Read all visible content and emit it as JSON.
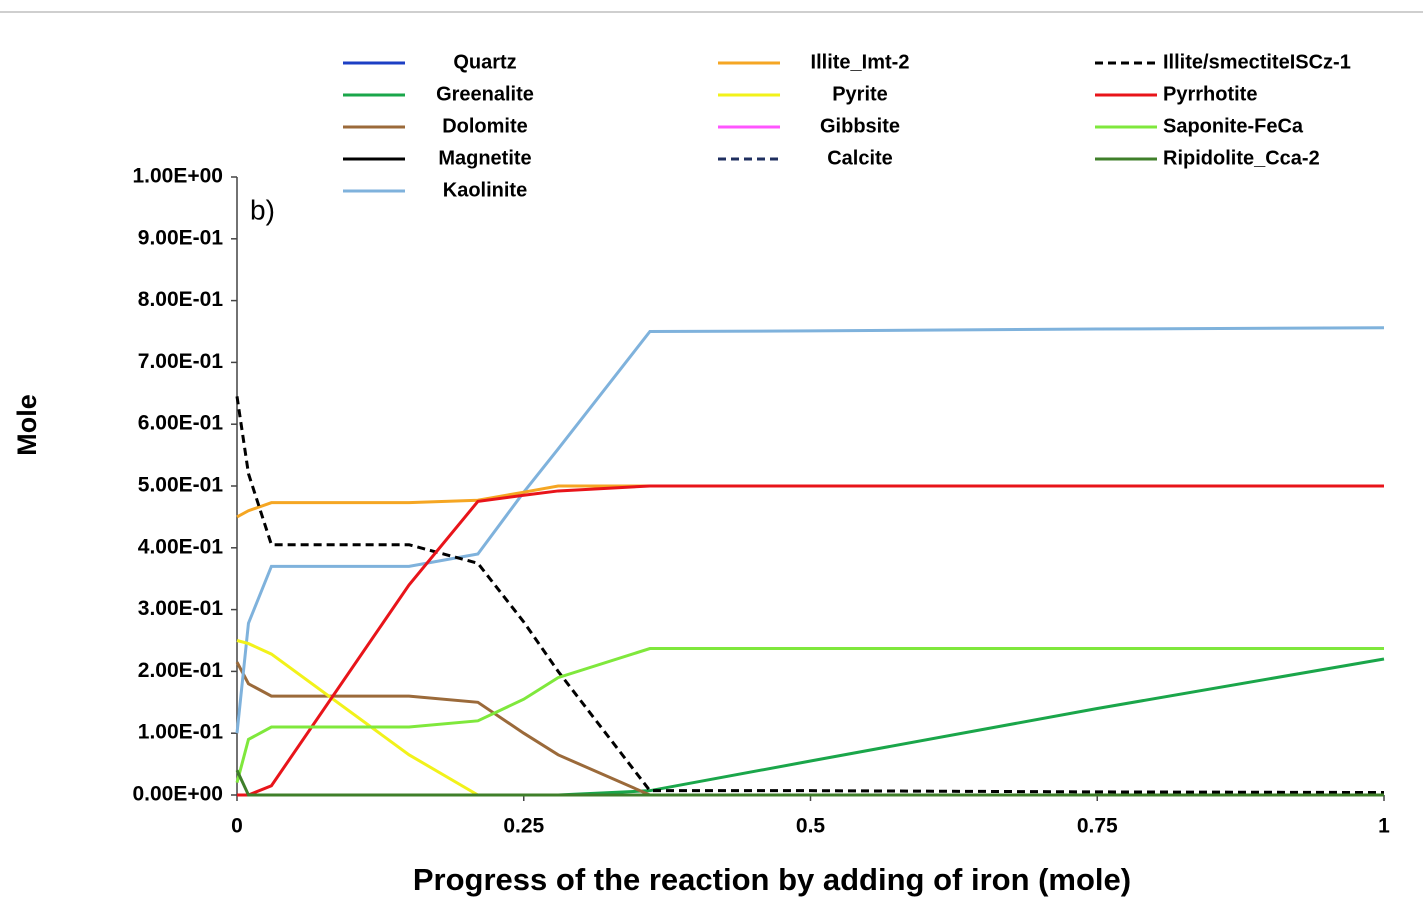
{
  "chart_data": {
    "type": "line",
    "annotation": "b)",
    "x_label": "Progress of the reaction by adding of iron (mole)",
    "y_label": "Mole",
    "x": [
      0,
      0.01,
      0.03,
      0.15,
      0.21,
      0.25,
      0.28,
      0.36,
      0.5,
      0.75,
      1
    ],
    "xlim": [
      0,
      1
    ],
    "xticks": [
      0,
      0.25,
      0.5,
      0.75,
      1
    ],
    "ylim": [
      0,
      1
    ],
    "yticks": [
      {
        "value": 0,
        "label": "0.00E+00"
      },
      {
        "value": 0.1,
        "label": "1.00E-01"
      },
      {
        "value": 0.2,
        "label": "2.00E-01"
      },
      {
        "value": 0.3,
        "label": "3.00E-01"
      },
      {
        "value": 0.4,
        "label": "4.00E-01"
      },
      {
        "value": 0.5,
        "label": "5.00E-01"
      },
      {
        "value": 0.6,
        "label": "6.00E-01"
      },
      {
        "value": 0.7,
        "label": "7.00E-01"
      },
      {
        "value": 0.8,
        "label": "8.00E-01"
      },
      {
        "value": 0.9,
        "label": "9.00E-01"
      },
      {
        "value": 1,
        "label": "1.00E+00"
      }
    ],
    "series": [
      {
        "name": "Quartz",
        "color": "#1c3fc4",
        "dashed": false,
        "values": [
          0,
          0,
          0,
          0,
          0,
          0,
          0,
          0,
          0,
          0,
          0
        ]
      },
      {
        "name": "Greenalite",
        "color": "#1aa64a",
        "dashed": false,
        "values": [
          0,
          0,
          0,
          0,
          0,
          0,
          0,
          0.007,
          0.055,
          0.14,
          0.22
        ]
      },
      {
        "name": "Dolomite",
        "color": "#9b6a3a",
        "dashed": false,
        "values": [
          0.215,
          0.18,
          0.16,
          0.16,
          0.15,
          0.1,
          0.065,
          0,
          0,
          0,
          0
        ]
      },
      {
        "name": "Magnetite",
        "color": "#000000",
        "dashed": false,
        "values": [
          0,
          0,
          0,
          0,
          0,
          0,
          0,
          0,
          0,
          0,
          0
        ]
      },
      {
        "name": "Kaolinite",
        "color": "#7fb2dc",
        "dashed": false,
        "values": [
          0.1,
          0.278,
          0.37,
          0.37,
          0.39,
          0.49,
          0.56,
          0.75,
          0.751,
          0.754,
          0.756
        ]
      },
      {
        "name": "Illite_Imt-2",
        "color": "#f5a623",
        "dashed": false,
        "values": [
          0.45,
          0.46,
          0.473,
          0.473,
          0.477,
          0.49,
          0.5,
          0.5,
          0.5,
          0.5,
          0.5
        ]
      },
      {
        "name": "Pyrite",
        "color": "#f2f21a",
        "dashed": false,
        "values": [
          0.25,
          0.245,
          0.228,
          0.065,
          0,
          0,
          0,
          0,
          0,
          0,
          0
        ]
      },
      {
        "name": "Gibbsite",
        "color": "#ff55ff",
        "dashed": false,
        "values": [
          0,
          0,
          0,
          0,
          0,
          0,
          0,
          0,
          0,
          0,
          0
        ]
      },
      {
        "name": "Calcite",
        "color": "#1f2f5f",
        "dashed": true,
        "values": [
          0,
          0,
          0,
          0,
          0,
          0,
          0,
          0,
          0,
          0,
          0
        ]
      },
      {
        "name": "Illite/smectiteISCz-1",
        "color": "#000000",
        "dashed": true,
        "values": [
          0.645,
          0.52,
          0.405,
          0.405,
          0.375,
          0.28,
          0.2,
          0.007,
          0.007,
          0.005,
          0.004
        ]
      },
      {
        "name": "Pyrrhotite",
        "color": "#e8141a",
        "dashed": false,
        "values": [
          0,
          0,
          0.015,
          0.34,
          0.475,
          0.485,
          0.492,
          0.5,
          0.5,
          0.5,
          0.5
        ]
      },
      {
        "name": "Saponite-FeCa",
        "color": "#7fe83c",
        "dashed": false,
        "values": [
          0.02,
          0.09,
          0.11,
          0.11,
          0.12,
          0.155,
          0.19,
          0.237,
          0.237,
          0.237,
          0.237
        ]
      },
      {
        "name": "Ripidolite_Cca-2",
        "color": "#3f7f2a",
        "dashed": false,
        "values": [
          0.04,
          0,
          0,
          0,
          0,
          0,
          0,
          0,
          0,
          0,
          0
        ]
      }
    ]
  }
}
